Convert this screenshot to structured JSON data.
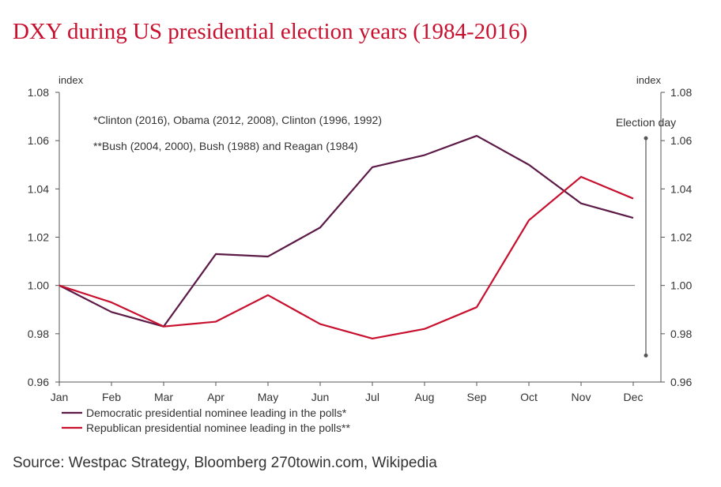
{
  "title": "DXY during US presidential election years (1984-2016)",
  "source": "Source: Westpac Strategy, Bloomberg 270towin.com, Wikipedia",
  "colors": {
    "title": "#c8102e",
    "democratic": "#5c1a46",
    "republican": "#c8102e",
    "axis": "#555555"
  },
  "chart_data": {
    "type": "line",
    "x": [
      "Jan",
      "Feb",
      "Mar",
      "Apr",
      "May",
      "Jun",
      "Jul",
      "Aug",
      "Sep",
      "Oct",
      "Nov",
      "Dec"
    ],
    "yticks": [
      "0.96",
      "0.98",
      "1.00",
      "1.02",
      "1.04",
      "1.06",
      "1.08"
    ],
    "ylim": [
      0.96,
      1.08
    ],
    "ylabel_left": "index",
    "ylabel_right": "index",
    "reference_line": 1.0,
    "grid": false,
    "legend_position": "bottom-left",
    "annotations": [
      "*Clinton (2016), Obama (2012, 2008), Clinton (1996, 1992)",
      "**Bush (2004, 2000), Bush (1988) and Reagan (1984)"
    ],
    "event_marker": {
      "label": "Election day",
      "x": 11.25,
      "y_from": 0.971,
      "y_to": 1.061
    },
    "series": [
      {
        "name": "Democratic presidential nominee leading in the polls*",
        "color": "#5c1a46",
        "values": [
          1.0,
          0.989,
          0.983,
          1.013,
          1.012,
          1.024,
          1.049,
          1.054,
          1.062,
          1.05,
          1.034,
          1.028
        ]
      },
      {
        "name": "Republican presidential nominee leading in the polls**",
        "color": "#c8102e",
        "values": [
          1.0,
          0.993,
          0.983,
          0.985,
          0.996,
          0.984,
          0.978,
          0.982,
          0.991,
          1.027,
          1.045,
          1.036
        ]
      }
    ]
  }
}
